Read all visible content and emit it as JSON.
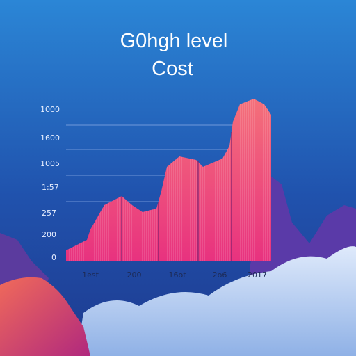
{
  "title": [
    "G0hgh level",
    "Cost"
  ],
  "y_labels": [
    "1000",
    "1600",
    "1005",
    "1:57",
    "257",
    "200",
    "0"
  ],
  "x_labels": [
    "1est",
    "200",
    "16ot",
    "2o6",
    "2017"
  ]
}
